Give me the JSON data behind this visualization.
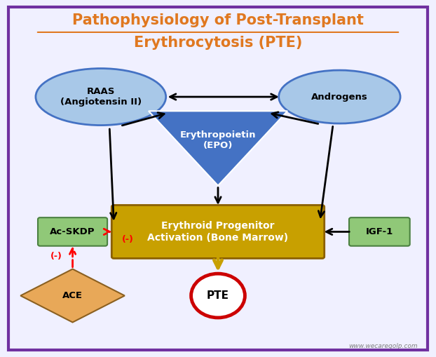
{
  "title_line1": "Pathophysiology of Post-Transplant",
  "title_line2": "Erythrocytosis (PTE)",
  "title_color": "#E07820",
  "title_fontsize": 15,
  "bg_color": "#F0F0FF",
  "border_color": "#7030A0",
  "raas_label": "RAAS\n(Angiotensin II)",
  "androgens_label": "Androgens",
  "epo_label": "Erythropoietin\n(EPO)",
  "bone_marrow_label": "Erythroid Progenitor\nActivation (Bone Marrow)",
  "igf_label": "IGF-1",
  "acskdp_label": "Ac-SKDP",
  "ace_label": "ACE",
  "pte_label": "PTE",
  "ellipse_color": "#A8C8E8",
  "ellipse_edge": "#4472C4",
  "triangle_color": "#4472C4",
  "rect_color": "#C8A000",
  "rect_edge": "#8B6000",
  "igf_box_color": "#90C878",
  "igf_box_edge": "#4A8040",
  "acskdp_box_color": "#90C878",
  "acskdp_box_edge": "#4A8040",
  "ace_diamond_color": "#E8A858",
  "ace_diamond_edge": "#8B6020",
  "pte_circle_color": "white",
  "pte_circle_edge": "#CC0000",
  "watermark": "www.wecaregolp.com"
}
